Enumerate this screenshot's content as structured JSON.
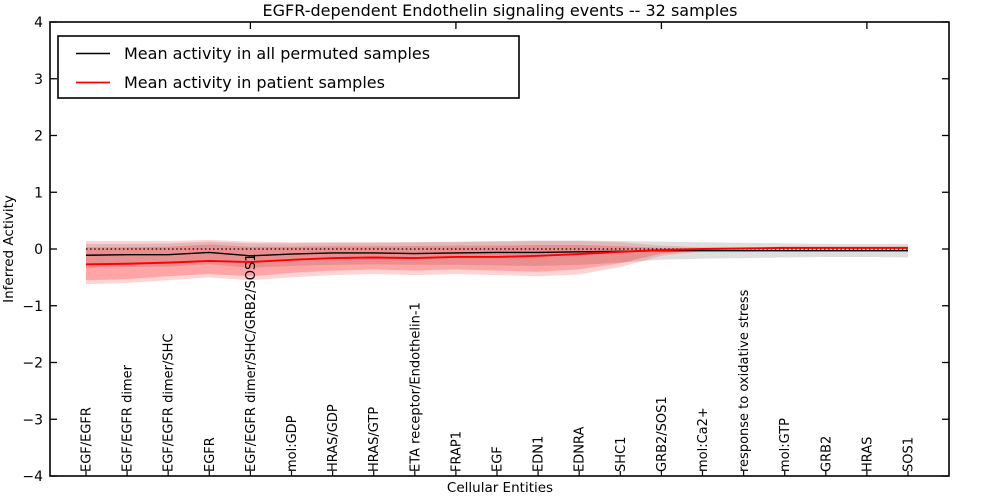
{
  "chart_data": {
    "type": "line",
    "title": "EGFR-dependent Endothelin signaling events -- 32 samples",
    "xlabel": "Cellular Entities",
    "ylabel": "Inferred Activity",
    "ylim": [
      -4,
      4
    ],
    "yticks": [
      -4,
      -3,
      -2,
      -1,
      0,
      1,
      2,
      3,
      4
    ],
    "x_top_ticks_at": [
      5,
      10,
      15,
      20
    ],
    "grid": false,
    "zero_line": {
      "value": 0,
      "style": "dotted",
      "color": "#000000"
    },
    "legend": {
      "position": "upper left",
      "entries": [
        {
          "label": "Mean activity in all permuted samples",
          "color": "#000000"
        },
        {
          "label": "Mean activity in patient samples",
          "color": "#ff0000"
        }
      ]
    },
    "categories": [
      "EGF/EGFR",
      "EGF/EGFR dimer",
      "EGF/EGFR dimer/SHC",
      "EGFR",
      "EGF/EGFR dimer/SHC/GRB2/SOS1",
      "mol:GDP",
      "HRAS/GDP",
      "HRAS/GTP",
      "ETA receptor/Endothelin-1",
      "FRAP1",
      "EGF",
      "EDN1",
      "EDNRA",
      "SHC1",
      "GRB2/SOS1",
      "mol:Ca2+",
      "response to oxidative stress",
      "mol:GTP",
      "GRB2",
      "HRAS",
      "SOS1"
    ],
    "series": [
      {
        "name": "Mean activity in all permuted samples",
        "color": "#000000",
        "values": [
          -0.11,
          -0.1,
          -0.1,
          -0.06,
          -0.12,
          -0.09,
          -0.07,
          -0.07,
          -0.08,
          -0.07,
          -0.06,
          -0.06,
          -0.05,
          -0.04,
          -0.03,
          -0.03,
          -0.03,
          -0.03,
          -0.03,
          -0.03,
          -0.03
        ]
      },
      {
        "name": "Mean activity in patient samples",
        "color": "#ff0000",
        "values": [
          -0.27,
          -0.26,
          -0.24,
          -0.21,
          -0.23,
          -0.19,
          -0.16,
          -0.15,
          -0.16,
          -0.14,
          -0.14,
          -0.12,
          -0.09,
          -0.05,
          -0.02,
          0.0,
          0.01,
          0.02,
          0.02,
          0.02,
          0.02
        ]
      }
    ],
    "bands": [
      {
        "name": "permuted-samples-spread",
        "color": "#000000",
        "opacity": 0.13,
        "top": [
          0.09,
          0.09,
          0.1,
          0.13,
          0.1,
          0.1,
          0.11,
          0.11,
          0.12,
          0.13,
          0.14,
          0.15,
          0.15,
          0.14,
          0.13,
          0.12,
          0.11,
          0.1,
          0.09,
          0.09,
          0.09
        ],
        "bottom": [
          -0.33,
          -0.32,
          -0.31,
          -0.27,
          -0.33,
          -0.3,
          -0.28,
          -0.27,
          -0.28,
          -0.28,
          -0.29,
          -0.3,
          -0.28,
          -0.24,
          -0.19,
          -0.17,
          -0.16,
          -0.15,
          -0.14,
          -0.14,
          -0.15
        ]
      },
      {
        "name": "patient-samples-spread-outer",
        "color": "#ff0000",
        "opacity": 0.17,
        "top": [
          0.14,
          0.14,
          0.14,
          0.16,
          0.13,
          0.12,
          0.12,
          0.12,
          0.12,
          0.12,
          0.13,
          0.14,
          0.14,
          0.12,
          0.06,
          0.03,
          0.03,
          0.03,
          0.03,
          0.03,
          0.04
        ],
        "bottom": [
          -0.62,
          -0.6,
          -0.55,
          -0.5,
          -0.55,
          -0.5,
          -0.46,
          -0.44,
          -0.46,
          -0.44,
          -0.46,
          -0.48,
          -0.45,
          -0.32,
          -0.12,
          -0.04,
          -0.01,
          0.0,
          0.01,
          0.01,
          0.01
        ]
      },
      {
        "name": "patient-samples-spread-inner",
        "color": "#ff0000",
        "opacity": 0.22,
        "top": [
          0.03,
          0.03,
          0.04,
          0.08,
          0.04,
          0.04,
          0.05,
          0.05,
          0.05,
          0.06,
          0.06,
          0.07,
          0.07,
          0.05,
          0.02,
          0.01,
          0.02,
          0.03,
          0.03,
          0.03,
          0.03
        ],
        "bottom": [
          -0.55,
          -0.53,
          -0.48,
          -0.44,
          -0.48,
          -0.42,
          -0.38,
          -0.36,
          -0.38,
          -0.36,
          -0.38,
          -0.4,
          -0.36,
          -0.25,
          -0.08,
          -0.02,
          0.0,
          0.01,
          0.01,
          0.01,
          0.01
        ]
      }
    ]
  }
}
